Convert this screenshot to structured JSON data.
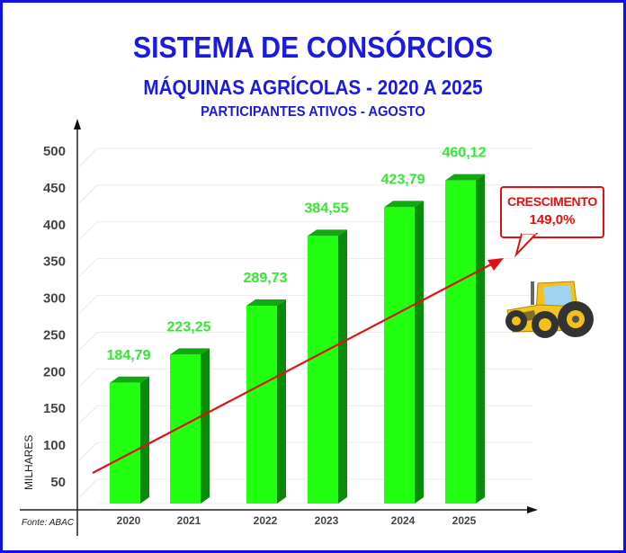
{
  "title": "SISTEMA DE CONSÓRCIOS",
  "subtitle": "MÁQUINAS AGRÍCOLAS - 2020 A 2025",
  "subsubtitle": "PARTICIPANTES ATIVOS - AGOSTO",
  "source": "Fonte: ABAC",
  "ylabel": "MILHARES",
  "callout": {
    "line1": "CRESCIMENTO",
    "line2": "149,0%"
  },
  "icons": {
    "tractor": "tractor-icon"
  },
  "colors": {
    "title": "#1a1ae0",
    "bar_front": "#22ff11",
    "bar_side": "#0a8a0a",
    "bar_top": "#12a812",
    "value_label": "#33e833",
    "trend": "#e01010",
    "border": "#1010e8"
  },
  "chart_data": {
    "type": "bar",
    "title": "SISTEMA DE CONSÓRCIOS - MÁQUINAS AGRÍCOLAS - 2020 A 2025 - PARTICIPANTES ATIVOS - AGOSTO",
    "xlabel": "",
    "ylabel": "MILHARES",
    "categories": [
      "2020",
      "2021",
      "2022",
      "2023",
      "2024",
      "2025"
    ],
    "values": [
      184.79,
      223.25,
      289.73,
      384.55,
      423.79,
      460.12
    ],
    "value_labels": [
      "184,79",
      "223,25",
      "289,73",
      "384,55",
      "423,79",
      "460,12"
    ],
    "yticks": [
      50,
      100,
      150,
      200,
      250,
      300,
      350,
      400,
      450,
      500
    ],
    "ylim": [
      0,
      520
    ],
    "grid": true,
    "legend": null,
    "annotations": [
      "CRESCIMENTO 149,0%",
      "trend arrow (red) rising from 2020 to 2025"
    ]
  }
}
